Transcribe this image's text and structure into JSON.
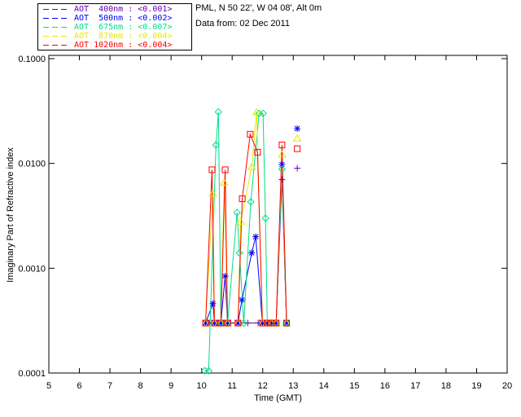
{
  "header": {
    "location_line": "PML, N 50 22', W 04 08', Alt 0m",
    "date_line": "Data from: 02 Dec 2011"
  },
  "chart_data": {
    "type": "line",
    "title": "",
    "xlabel": "Time (GMT)",
    "ylabel": "Imaginary Part of Refractive index",
    "x_axis": {
      "min": 5,
      "max": 20,
      "ticks": [
        5,
        6,
        7,
        8,
        9,
        10,
        11,
        12,
        13,
        14,
        15,
        16,
        17,
        18,
        19,
        20
      ]
    },
    "y_axis": {
      "scale": "log",
      "min": 0.0001,
      "max": 0.1,
      "ticks": [
        {
          "value": 0.1,
          "label": "0.1000"
        },
        {
          "value": 0.01,
          "label": "0.0100"
        },
        {
          "value": 0.001,
          "label": "0.0010"
        },
        {
          "value": 0.0001,
          "label": "0.0001"
        }
      ]
    },
    "grid": false,
    "legend_position": "top-left-outside",
    "series": [
      {
        "name": "AOT 400nm",
        "legend_label": "AOT  400nm : <0.001>",
        "color": "#6600aa",
        "marker": "plus",
        "segments": [
          [
            [
              10.13,
              0.0003
            ],
            [
              10.25,
              0.0003
            ],
            [
              10.42,
              0.0003
            ],
            [
              10.55,
              0.0003
            ],
            [
              10.63,
              0.0003
            ],
            [
              10.75,
              0.0003
            ],
            [
              10.85,
              0.0003
            ],
            [
              10.95,
              0.0003
            ],
            [
              11.19,
              0.0003
            ],
            [
              11.51,
              0.0003
            ],
            [
              11.85,
              0.0003
            ],
            [
              11.99,
              0.0003
            ],
            [
              12.15,
              0.0003
            ],
            [
              12.28,
              0.0003
            ],
            [
              12.44,
              0.0003
            ],
            [
              12.63,
              0.007
            ],
            [
              12.78,
              0.0003
            ]
          ],
          [
            [
              13.13,
              0.009
            ]
          ]
        ]
      },
      {
        "name": "AOT 500nm",
        "legend_label": "AOT  500nm : <0.002>",
        "color": "#0000ff",
        "marker": "asterisk",
        "segments": [
          [
            [
              10.13,
              0.0003
            ],
            [
              10.37,
              0.00046
            ],
            [
              10.42,
              0.0003
            ],
            [
              10.63,
              0.0003
            ],
            [
              10.77,
              0.00084
            ],
            [
              10.85,
              0.0003
            ],
            [
              11.19,
              0.0003
            ],
            [
              11.32,
              0.0005
            ],
            [
              11.64,
              0.0014
            ],
            [
              11.77,
              0.002
            ],
            [
              11.99,
              0.0003
            ],
            [
              12.15,
              0.0003
            ],
            [
              12.28,
              0.0003
            ],
            [
              12.44,
              0.0003
            ],
            [
              12.63,
              0.0098
            ],
            [
              12.78,
              0.0003
            ]
          ],
          [
            [
              13.13,
              0.0215
            ]
          ]
        ]
      },
      {
        "name": "AOT 675nm",
        "legend_label": "AOT  675nm : <0.007>",
        "color": "#00dd88",
        "marker": "diamond",
        "segments": [
          [
            [
              10.1,
              0.000105
            ],
            [
              10.23,
              0.000105
            ],
            [
              10.47,
              0.015
            ],
            [
              10.55,
              0.031
            ],
            [
              10.63,
              0.0003
            ],
            [
              10.85,
              0.0003
            ],
            [
              11.16,
              0.0034
            ],
            [
              11.24,
              0.0014
            ],
            [
              11.38,
              0.0003
            ],
            [
              11.61,
              0.0043
            ],
            [
              11.88,
              0.03
            ],
            [
              12.01,
              0.03
            ],
            [
              12.09,
              0.003
            ],
            [
              12.15,
              0.0003
            ],
            [
              12.28,
              0.0003
            ],
            [
              12.44,
              0.0003
            ],
            [
              12.63,
              0.0088
            ],
            [
              12.78,
              0.0003
            ]
          ]
        ]
      },
      {
        "name": "AOT 870nm",
        "legend_label": "AOT  870nm : <0.004>",
        "color": "#e8e800",
        "marker": "triangle",
        "segments": [
          [
            [
              10.13,
              0.0003
            ],
            [
              10.37,
              0.0052
            ],
            [
              10.42,
              0.0003
            ],
            [
              10.63,
              0.0003
            ],
            [
              10.74,
              0.0066
            ],
            [
              10.85,
              0.0003
            ],
            [
              11.19,
              0.0003
            ],
            [
              11.28,
              0.0028
            ],
            [
              11.64,
              0.0093
            ],
            [
              11.8,
              0.031
            ],
            [
              11.99,
              0.0003
            ],
            [
              12.15,
              0.0003
            ],
            [
              12.28,
              0.0003
            ],
            [
              12.44,
              0.0003
            ],
            [
              12.63,
              0.0122
            ],
            [
              12.78,
              0.0003
            ]
          ],
          [
            [
              13.13,
              0.0174
            ]
          ]
        ]
      },
      {
        "name": "AOT 1020nm",
        "legend_label": "AOT 1020nm : <0.004>",
        "color": "#ff0000",
        "marker": "square",
        "segments": [
          [
            [
              10.13,
              0.0003
            ],
            [
              10.34,
              0.0087
            ],
            [
              10.42,
              0.0003
            ],
            [
              10.63,
              0.0003
            ],
            [
              10.77,
              0.0087
            ],
            [
              10.85,
              0.0003
            ],
            [
              11.19,
              0.0003
            ],
            [
              11.33,
              0.0046
            ],
            [
              11.59,
              0.019
            ],
            [
              11.83,
              0.0128
            ],
            [
              11.99,
              0.0003
            ],
            [
              12.15,
              0.0003
            ],
            [
              12.28,
              0.0003
            ],
            [
              12.44,
              0.0003
            ],
            [
              12.63,
              0.015
            ],
            [
              12.78,
              0.0003
            ]
          ],
          [
            [
              13.13,
              0.0138
            ]
          ]
        ]
      }
    ]
  }
}
